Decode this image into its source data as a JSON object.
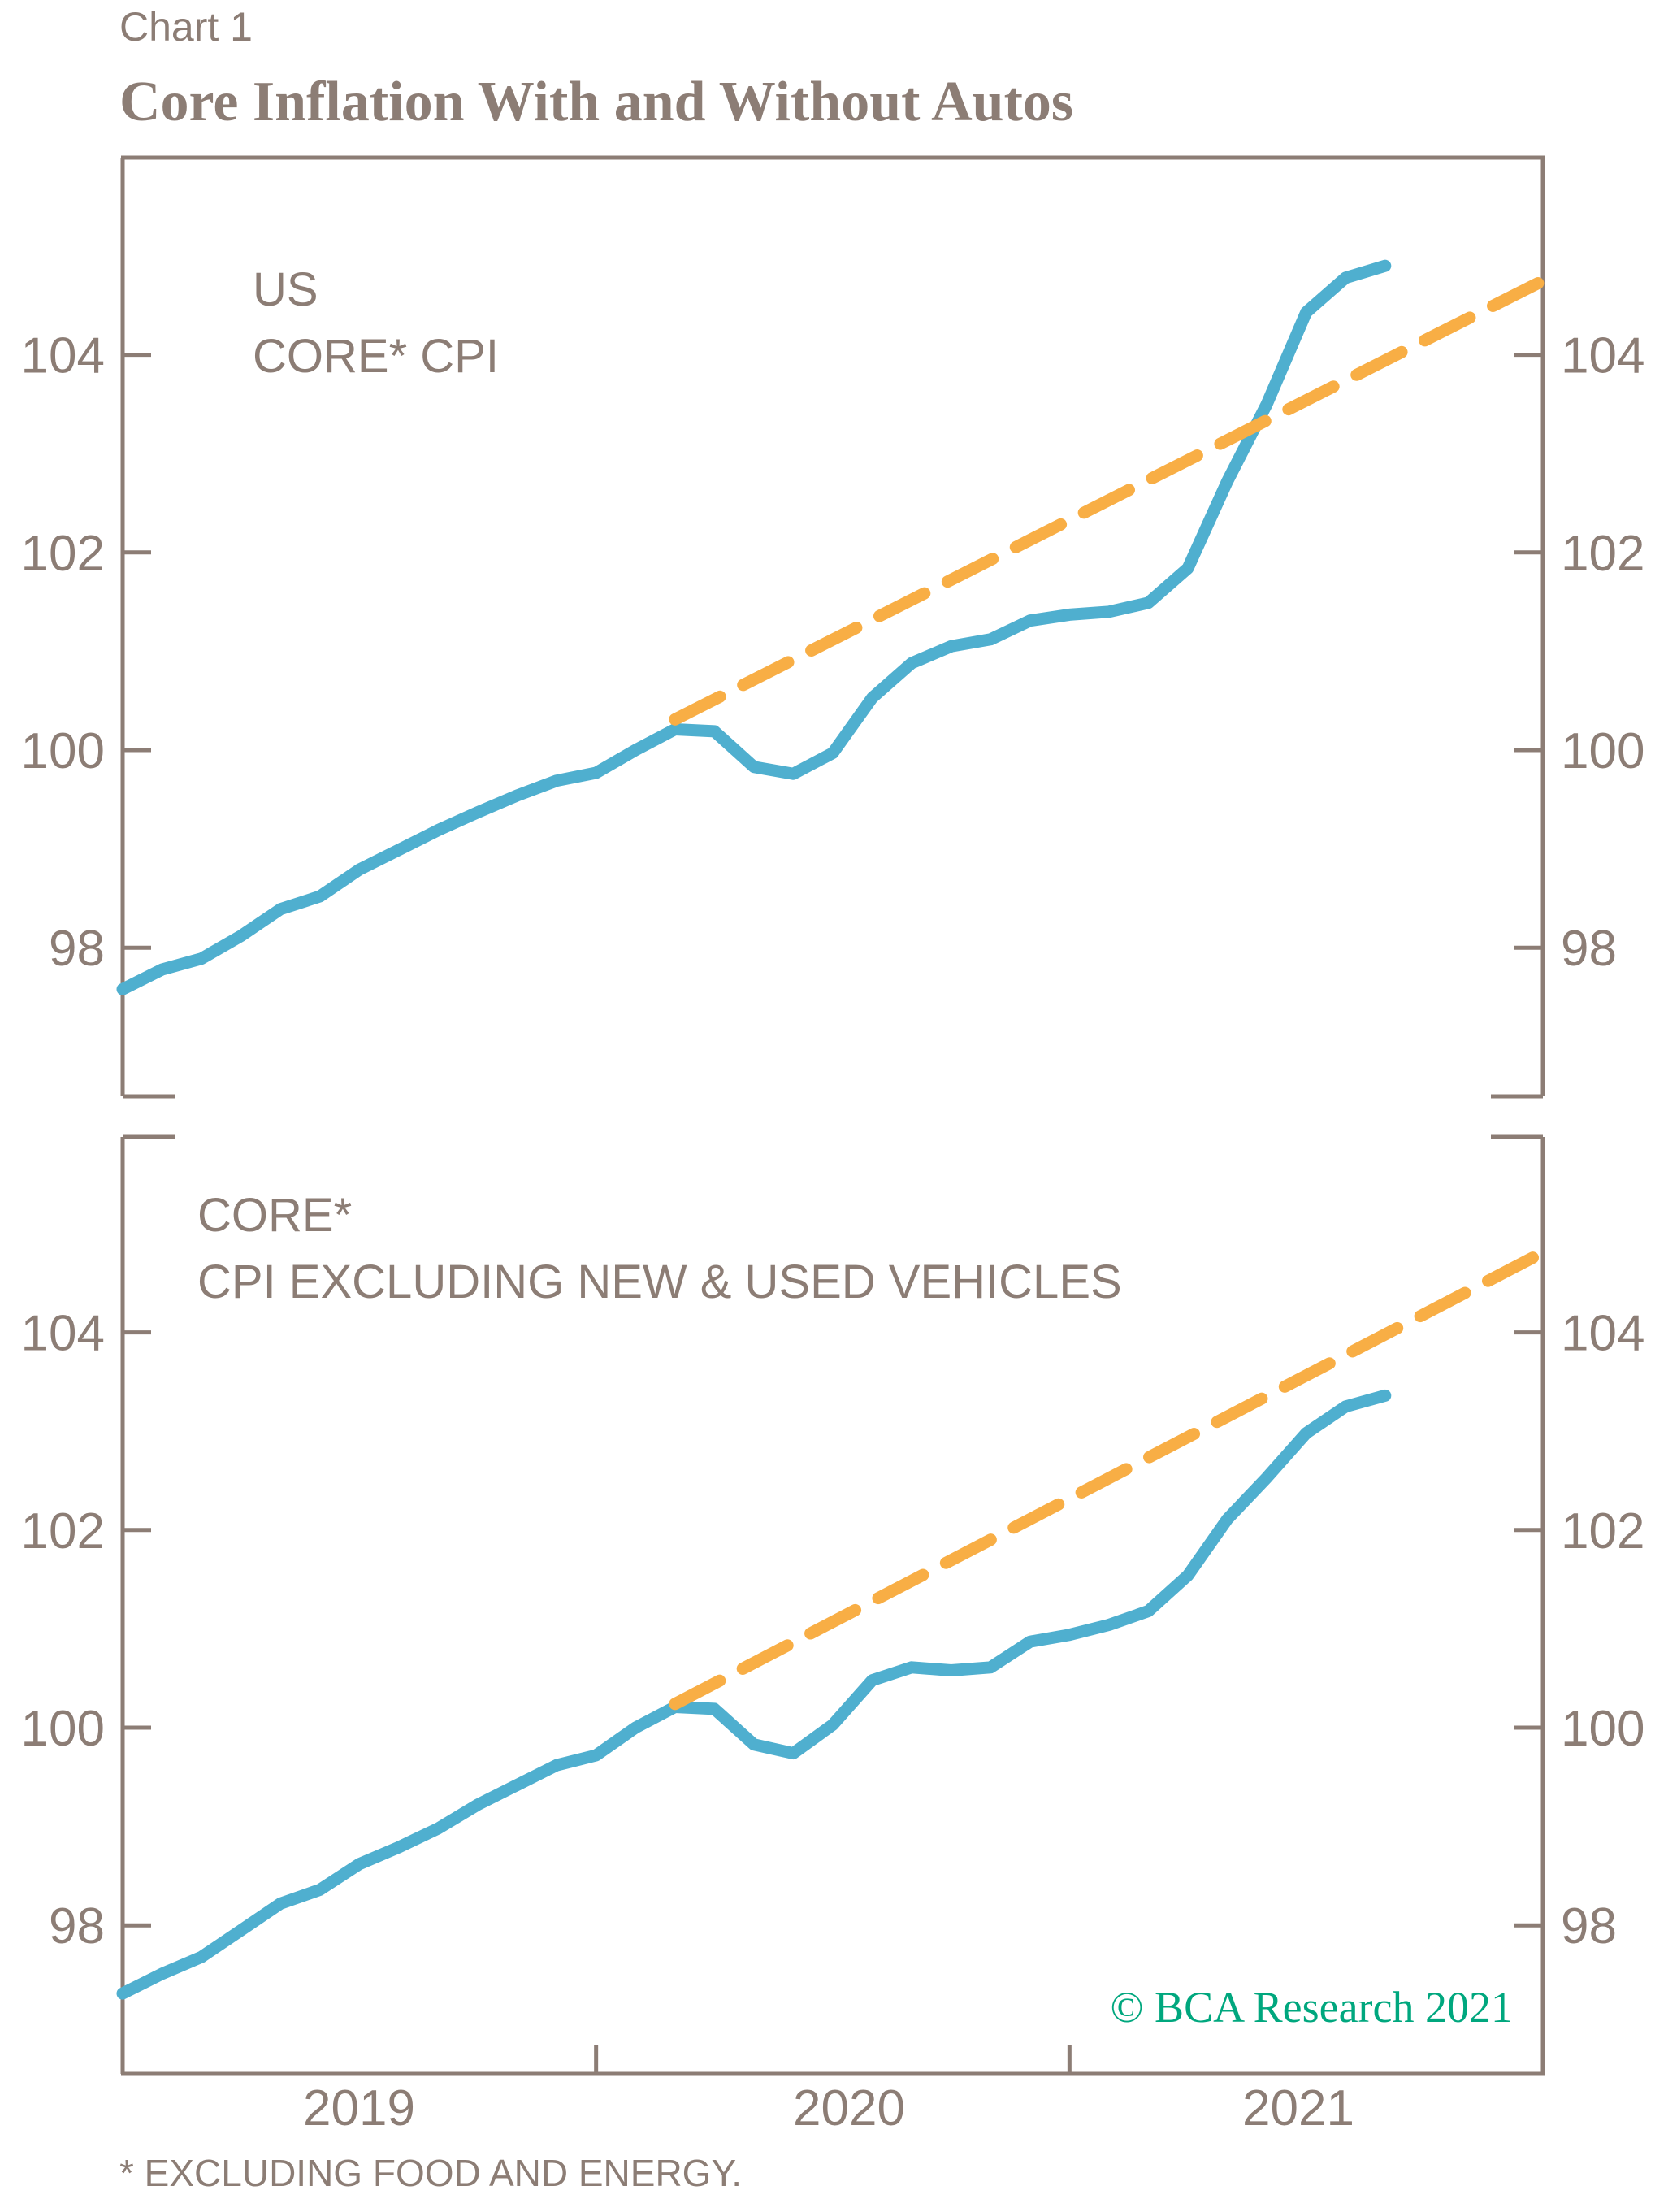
{
  "header": {
    "chart_number": "Chart 1",
    "title": "Core Inflation With and Without Autos"
  },
  "footnote": "* EXCLUDING FOOD AND ENERGY.",
  "watermark": "© BCA Research 2021",
  "colors": {
    "axis_text": "#8c7d75",
    "actual_line": "#4fafcf",
    "trend_line": "#f8ae45",
    "watermark": "#00a77e"
  },
  "chart_data": [
    {
      "type": "line",
      "panel_label": [
        "US",
        "CORE* CPI"
      ],
      "x_tick_labels": [
        "2019",
        "2020",
        "2021"
      ],
      "xlim": [
        "2019-01",
        "2022-01"
      ],
      "ylim": [
        96.6,
        106.1
      ],
      "y_ticks": [
        98,
        100,
        102,
        104
      ],
      "y_tick_labels": [
        "98",
        "100",
        "102",
        "104"
      ],
      "grid": false,
      "series": [
        {
          "style": "solid",
          "color": "#4fafcf",
          "x": [
            "2019-01",
            "2019-02",
            "2019-03",
            "2019-04",
            "2019-05",
            "2019-06",
            "2019-07",
            "2019-08",
            "2019-09",
            "2019-10",
            "2019-11",
            "2019-12",
            "2020-01",
            "2020-02",
            "2020-03",
            "2020-04",
            "2020-05",
            "2020-06",
            "2020-07",
            "2020-08",
            "2020-09",
            "2020-10",
            "2020-11",
            "2020-12",
            "2021-01",
            "2021-02",
            "2021-03",
            "2021-04",
            "2021-05",
            "2021-06",
            "2021-07",
            "2021-08",
            "2021-09"
          ],
          "values": [
            97.58,
            97.78,
            97.89,
            98.12,
            98.39,
            98.52,
            98.79,
            98.99,
            99.19,
            99.37,
            99.54,
            99.69,
            99.77,
            100.0,
            100.21,
            100.19,
            99.83,
            99.76,
            99.97,
            100.53,
            100.88,
            101.05,
            101.12,
            101.31,
            101.37,
            101.4,
            101.49,
            101.84,
            102.72,
            103.5,
            104.43,
            104.78,
            104.9
          ]
        },
        {
          "style": "dashed",
          "color": "#f8ae45",
          "x": [
            "2020-03",
            "2022-01"
          ],
          "values": [
            100.31,
            104.75
          ]
        }
      ]
    },
    {
      "type": "line",
      "panel_label": [
        "CORE*",
        "CPI EXCLUDING NEW & USED VEHICLES"
      ],
      "x_tick_labels": [
        "2019",
        "2020",
        "2021"
      ],
      "xlim": [
        "2019-01",
        "2022-01"
      ],
      "ylim": [
        96.6,
        106.1
      ],
      "y_ticks": [
        98,
        100,
        102,
        104
      ],
      "y_tick_labels": [
        "98",
        "100",
        "102",
        "104"
      ],
      "grid": false,
      "series": [
        {
          "style": "solid",
          "color": "#4fafcf",
          "x": [
            "2019-01",
            "2019-02",
            "2019-03",
            "2019-04",
            "2019-05",
            "2019-06",
            "2019-07",
            "2019-08",
            "2019-09",
            "2019-10",
            "2019-11",
            "2019-12",
            "2020-01",
            "2020-02",
            "2020-03",
            "2020-04",
            "2020-05",
            "2020-06",
            "2020-07",
            "2020-08",
            "2020-09",
            "2020-10",
            "2020-11",
            "2020-12",
            "2021-01",
            "2021-02",
            "2021-03",
            "2021-04",
            "2021-05",
            "2021-06",
            "2021-07",
            "2021-08",
            "2021-09"
          ],
          "values": [
            97.31,
            97.51,
            97.68,
            97.95,
            98.22,
            98.36,
            98.62,
            98.79,
            98.98,
            99.22,
            99.42,
            99.62,
            99.72,
            100.0,
            100.21,
            100.19,
            99.83,
            99.74,
            100.03,
            100.48,
            100.61,
            100.58,
            100.61,
            100.87,
            100.94,
            101.04,
            101.18,
            101.54,
            102.11,
            102.53,
            102.98,
            103.25,
            103.36
          ]
        },
        {
          "style": "dashed",
          "color": "#f8ae45",
          "x": [
            "2020-03",
            "2022-01"
          ],
          "values": [
            100.24,
            104.81
          ]
        }
      ]
    }
  ]
}
